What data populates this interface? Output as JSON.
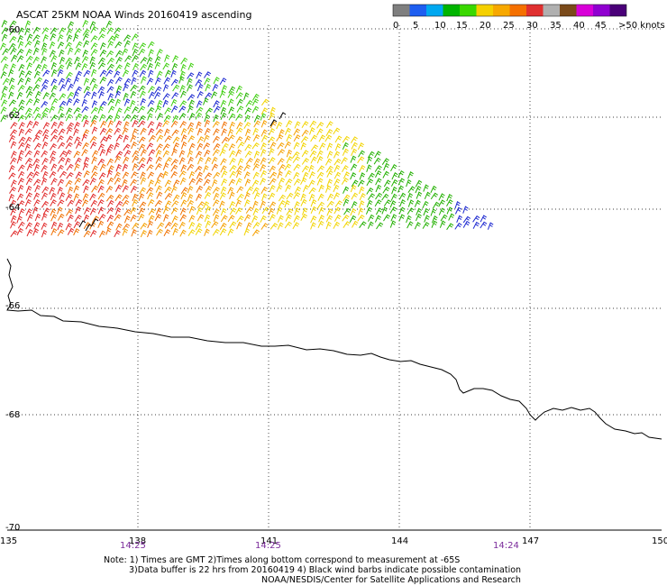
{
  "title": "ASCAT 25KM NOAA Winds 20160419 ascending",
  "legend": {
    "labels": [
      "0",
      "5",
      "10",
      "15",
      "20",
      "25",
      "30",
      "35",
      "40",
      "45",
      ">50 knots"
    ],
    "colors": [
      "#7f7f7f",
      "#1e5ef0",
      "#00a8f0",
      "#00b400",
      "#39d800",
      "#f5d000",
      "#f7a800",
      "#f57000",
      "#e03030",
      "#b0b0b0",
      "#7a4a1a",
      "#d800d8",
      "#9000d0",
      "#4a0078"
    ]
  },
  "axes": {
    "lat_labels": [
      "-60",
      "-62",
      "-64",
      "-66",
      "-68",
      "-70"
    ],
    "lon_labels": [
      "135",
      "138",
      "141",
      "144",
      "147",
      "150"
    ]
  },
  "times": [
    "14:25",
    "14:25",
    "14:24"
  ],
  "notes": [
    "Note: 1) Times are GMT 2)Times along bottom correspond to measurement at -65S",
    "3)Data buffer is 22 hrs from 20160419 4) Black wind barbs indicate possible contamination",
    "NOAA/NESDIS/Center for Satellite Applications and Research"
  ],
  "colors": {
    "gridline": "#000000",
    "coast": "#000000",
    "time_label": "#7a2a9a"
  }
}
